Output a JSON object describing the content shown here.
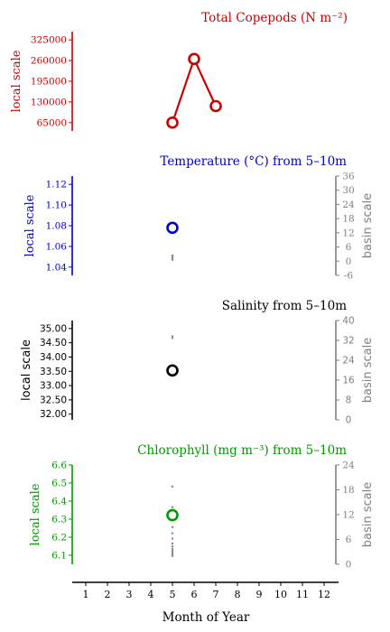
{
  "xaxis": {
    "label": "Month of Year",
    "ticks": [
      "1",
      "2",
      "3",
      "4",
      "5",
      "6",
      "7",
      "8",
      "9",
      "10",
      "11",
      "12"
    ]
  },
  "chart_data": [
    {
      "type": "line",
      "title": "Total Copepods (N m⁻²)",
      "ylabel": "local scale",
      "color": "#cc0000",
      "y_ticks": [
        "65000",
        "130000",
        "195000",
        "260000",
        "325000"
      ],
      "ylim": [
        39000,
        351000
      ],
      "series": [
        {
          "x": [
            5,
            6,
            7
          ],
          "y": [
            65000,
            265000,
            117000
          ]
        }
      ]
    },
    {
      "type": "scatter",
      "title": "Temperature (°C) from 5–10m",
      "ylabel": "local scale",
      "ylabel_right": "basin scale",
      "color": "#0000cc",
      "y_ticks": [
        "1.04",
        "1.06",
        "1.08",
        "1.10",
        "1.12"
      ],
      "ylim": [
        1.032,
        1.128
      ],
      "y2_ticks": [
        "-6",
        "0",
        "6",
        "12",
        "18",
        "24",
        "30",
        "36"
      ],
      "y2lim": [
        -6,
        36
      ],
      "local_point": {
        "x": 5,
        "y": 1.078
      },
      "basin_points": {
        "x": 5,
        "y": [
          0.6,
          1.2,
          1.8,
          2.4
        ]
      }
    },
    {
      "type": "scatter",
      "title": "Salinity from 5–10m",
      "ylabel": "local scale",
      "ylabel_right": "basin scale",
      "color": "#000000",
      "y_ticks": [
        "32.00",
        "32.50",
        "33.00",
        "33.50",
        "34.00",
        "34.50",
        "35.00"
      ],
      "ylim": [
        31.8,
        35.28
      ],
      "y2_ticks": [
        "0",
        "8",
        "16",
        "24",
        "32",
        "40"
      ],
      "y2lim": [
        0,
        40
      ],
      "local_point": {
        "x": 5,
        "y": 33.53
      },
      "basin_points": {
        "x": 5,
        "y": [
          33.0,
          33.6
        ]
      }
    },
    {
      "type": "scatter",
      "title": "Chlorophyll (mg m⁻³) from 5–10m",
      "ylabel": "local scale",
      "ylabel_right": "basin scale",
      "color": "#009900",
      "y_ticks": [
        "6.1",
        "6.2",
        "6.3",
        "6.4",
        "6.5",
        "6.6"
      ],
      "ylim": [
        6.05,
        6.6
      ],
      "y2_ticks": [
        "0",
        "6",
        "12",
        "18",
        "24"
      ],
      "y2lim": [
        0,
        24
      ],
      "local_point": {
        "x": 5,
        "y": 6.322
      },
      "basin_points": {
        "x": 5,
        "y": [
          2.0,
          2.4,
          2.8,
          3.2,
          3.7,
          4.3,
          5.0,
          6.2,
          7.5,
          9.0,
          10.6,
          13.8,
          18.8
        ]
      }
    }
  ]
}
